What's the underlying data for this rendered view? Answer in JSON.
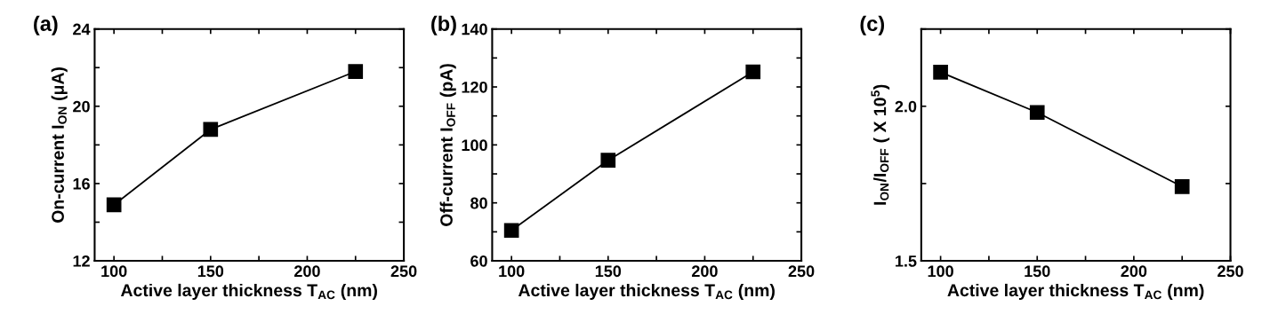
{
  "chart_data": [
    {
      "type": "line",
      "title": "(a)",
      "xlabel": "Active layer thickness T$_{AC}$ (nm)",
      "ylabel": "On-current I$_{ON}$ (μA)",
      "x": [
        100,
        150,
        225
      ],
      "series": [
        {
          "color": "#000000",
          "values": [
            14.9,
            18.8,
            21.8
          ]
        }
      ],
      "marker": "square",
      "line_style": "solid",
      "grid": false,
      "xlim": [
        90,
        250
      ],
      "xticks": [
        100,
        {
          "value": 125,
          "label": null
        },
        150,
        {
          "value": 175,
          "label": null
        },
        200,
        {
          "value": 225,
          "label": null
        },
        250
      ],
      "ylim": [
        12,
        24
      ],
      "yticks": [
        12,
        {
          "value": 14,
          "label": null
        },
        16,
        {
          "value": 18,
          "label": null
        },
        20,
        {
          "value": 22,
          "label": null
        },
        24
      ]
    },
    {
      "type": "line",
      "title": "(b)",
      "xlabel": "Active layer thickness T$_{AC}$ (nm)",
      "ylabel": "Off-current I$_{OFF}$ (pA)",
      "x": [
        100,
        150,
        225
      ],
      "series": [
        {
          "color": "#000000",
          "values": [
            70.5,
            94.7,
            125.2
          ]
        }
      ],
      "marker": "square",
      "line_style": "solid",
      "grid": false,
      "xlim": [
        90,
        250
      ],
      "xticks": [
        100,
        {
          "value": 125,
          "label": null
        },
        150,
        {
          "value": 175,
          "label": null
        },
        200,
        {
          "value": 225,
          "label": null
        },
        250
      ],
      "ylim": [
        60,
        140
      ],
      "yticks": [
        60,
        {
          "value": 70,
          "label": null
        },
        80,
        {
          "value": 90,
          "label": null
        },
        100,
        {
          "value": 110,
          "label": null
        },
        120,
        {
          "value": 130,
          "label": null
        },
        140
      ]
    },
    {
      "type": "line",
      "title": "(c)",
      "xlabel": "Active layer thickness T$_{AC}$ (nm)",
      "ylabel": "I$_{ON}$/I$_{OFF}$ ( X 10$^{5}$)",
      "x": [
        100,
        150,
        225
      ],
      "series": [
        {
          "color": "#000000",
          "values": [
            2.11,
            1.98,
            1.74
          ]
        }
      ],
      "marker": "square",
      "line_style": "solid",
      "grid": false,
      "xlim": [
        90,
        250
      ],
      "xticks": [
        100,
        {
          "value": 125,
          "label": null
        },
        150,
        {
          "value": 175,
          "label": null
        },
        200,
        {
          "value": 225,
          "label": null
        },
        250
      ],
      "ylim": [
        1.5,
        2.25
      ],
      "yticks": [
        {
          "value": 1.5,
          "label": "1.5"
        },
        {
          "value": 1.75,
          "label": null
        },
        {
          "value": 2.0,
          "label": "2.0"
        },
        {
          "value": 2.25,
          "label": null
        }
      ]
    }
  ]
}
